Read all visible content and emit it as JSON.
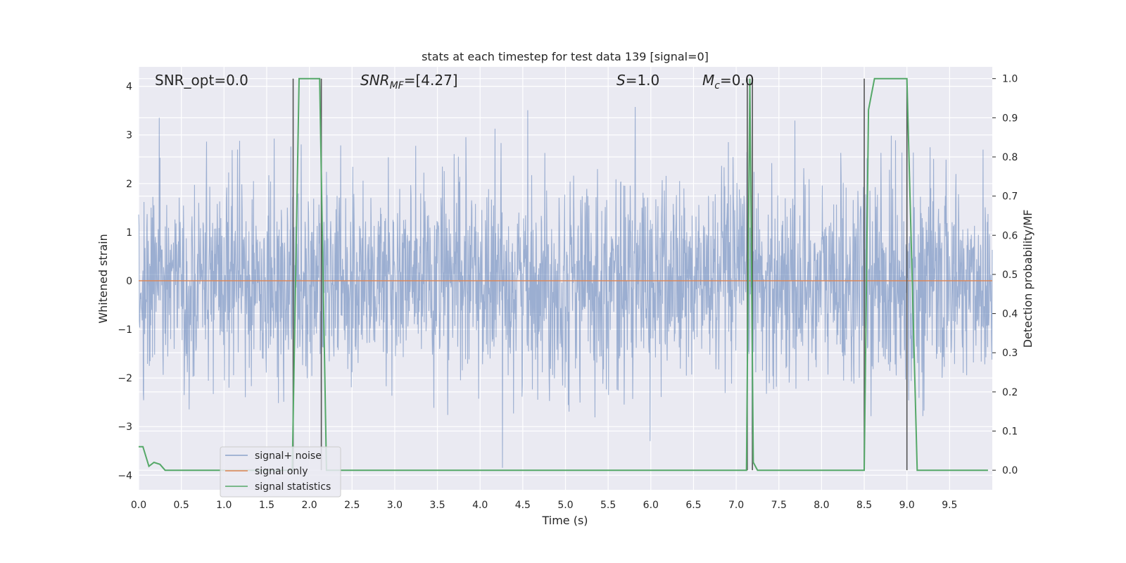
{
  "chart_data": {
    "type": "line",
    "title": "stats at each timestep for test data 139 [signal=0]",
    "xlabel": "Time (s)",
    "ylabel": "Whitened strain",
    "ylabel_right": "Detection probability/MF",
    "xlim": [
      0.0,
      10.0
    ],
    "ylim": [
      -4.3,
      4.4
    ],
    "ylim_right": [
      -0.05,
      1.03
    ],
    "x_ticks": [
      "0.0",
      "0.5",
      "1.0",
      "1.5",
      "2.0",
      "2.5",
      "3.0",
      "3.5",
      "4.0",
      "4.5",
      "5.0",
      "5.5",
      "6.0",
      "6.5",
      "7.0",
      "7.5",
      "8.0",
      "8.5",
      "9.0",
      "9.5"
    ],
    "y_ticks": [
      "4",
      "3",
      "2",
      "1",
      "0",
      "−1",
      "−2",
      "−3",
      "−4"
    ],
    "y_ticks_right": [
      "1.0",
      "0.9",
      "0.8",
      "0.7",
      "0.6",
      "0.5",
      "0.4",
      "0.3",
      "0.2",
      "0.1",
      "0.0"
    ],
    "grid": true,
    "legend_position": "lower-left",
    "annotations": {
      "snr_opt": "SNR_opt=0.0",
      "snr_mf_main": "SNR",
      "snr_mf_sub": "MF",
      "snr_mf_rest": "=[4.27]",
      "s_main": "S",
      "s_rest": "=1.0",
      "mc_main": "M",
      "mc_sub": "c",
      "mc_rest": "=0.0"
    },
    "series": [
      {
        "name": "signal+ noise",
        "color": "#4c72b0",
        "description_values": "whitened noise, roughly within [-3.8, 4.0]"
      },
      {
        "name": "signal only",
        "color": "#dd8452",
        "x": [
          0.0,
          10.0
        ],
        "y": [
          0.0,
          0.0
        ]
      },
      {
        "name": "signal statistics",
        "color": "#55a868",
        "axis": "right",
        "x": [
          0.0,
          0.05,
          0.12,
          0.18,
          0.25,
          0.31,
          0.4,
          1.0,
          1.5,
          1.8,
          1.88,
          2.12,
          2.2,
          2.3,
          3.0,
          4.0,
          5.0,
          6.0,
          7.0,
          7.12,
          7.16,
          7.2,
          7.25,
          7.32,
          8.0,
          8.5,
          8.55,
          8.62,
          9.0,
          9.12,
          9.5,
          9.95
        ],
        "y": [
          0.06,
          0.06,
          0.01,
          0.02,
          0.015,
          0.0,
          0.0,
          0.0,
          0.0,
          0.0,
          1.0,
          1.0,
          0.0,
          0.0,
          0.0,
          0.0,
          0.0,
          0.0,
          0.0,
          0.0,
          1.0,
          0.02,
          0.0,
          0.0,
          0.0,
          0.0,
          0.92,
          1.0,
          1.0,
          0.0,
          0.0,
          0.0
        ]
      }
    ],
    "vertical_lines": {
      "color": "#555555",
      "x": [
        1.81,
        2.14,
        7.13,
        7.19,
        8.5,
        9.0
      ]
    }
  }
}
